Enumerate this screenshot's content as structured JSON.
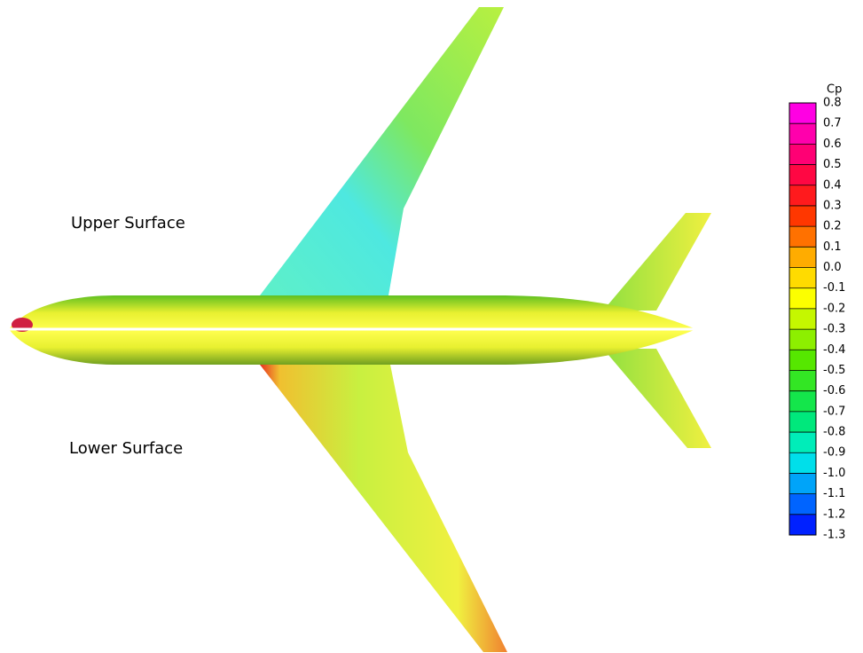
{
  "labels": {
    "upper": "Upper Surface",
    "lower": "Lower Surface"
  },
  "legend": {
    "title": "Cp",
    "ticks": [
      "0.8",
      "0.7",
      "0.6",
      "0.5",
      "0.4",
      "0.3",
      "0.2",
      "0.1",
      "0.0",
      "-0.1",
      "-0.2",
      "-0.3",
      "-0.4",
      "-0.5",
      "-0.6",
      "-0.7",
      "-0.8",
      "-0.9",
      "-1.0",
      "-1.1",
      "-1.2",
      "-1.3"
    ]
  }
}
